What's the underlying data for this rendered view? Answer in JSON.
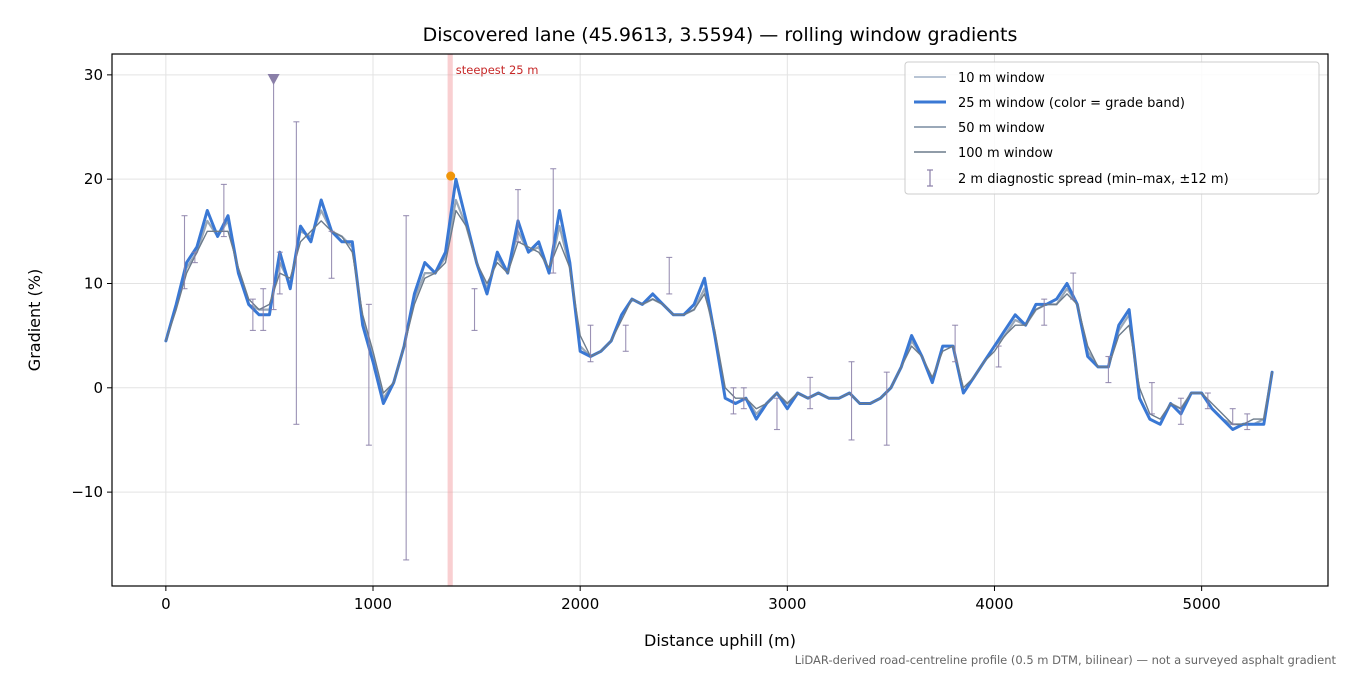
{
  "chart_data": {
    "type": "line",
    "title": "Discovered lane (45.9613, 3.5594) — rolling window gradients",
    "xlabel": "Distance uphill (m)",
    "ylabel": "Gradient (%)",
    "xlim": [
      -260,
      5610
    ],
    "ylim": [
      -19,
      32
    ],
    "xticks": [
      0,
      1000,
      2000,
      3000,
      4000,
      5000
    ],
    "xtick_labels": [
      "0",
      "1000",
      "2000",
      "3000",
      "4000",
      "5000"
    ],
    "yticks": [
      -10,
      0,
      10,
      20,
      30
    ],
    "ytick_labels": [
      "−10",
      "0",
      "10",
      "20",
      "30"
    ],
    "grid": true,
    "legend_position": "top-right",
    "x": [
      0,
      50,
      100,
      150,
      200,
      250,
      300,
      350,
      400,
      450,
      500,
      550,
      600,
      650,
      700,
      750,
      800,
      850,
      900,
      950,
      1000,
      1050,
      1100,
      1150,
      1200,
      1250,
      1300,
      1350,
      1400,
      1450,
      1500,
      1550,
      1600,
      1650,
      1700,
      1750,
      1800,
      1850,
      1900,
      1950,
      2000,
      2050,
      2100,
      2150,
      2200,
      2250,
      2300,
      2350,
      2400,
      2450,
      2500,
      2550,
      2600,
      2650,
      2700,
      2750,
      2800,
      2850,
      2900,
      2950,
      3000,
      3050,
      3100,
      3150,
      3200,
      3250,
      3300,
      3350,
      3400,
      3450,
      3500,
      3550,
      3600,
      3650,
      3700,
      3750,
      3800,
      3850,
      3900,
      3950,
      4000,
      4050,
      4100,
      4150,
      4200,
      4250,
      4300,
      4350,
      4400,
      4450,
      4500,
      4550,
      4600,
      4650,
      4700,
      4750,
      4800,
      4850,
      4900,
      4950,
      5000,
      5050,
      5100,
      5150,
      5200,
      5250,
      5300,
      5340
    ],
    "series": [
      {
        "name": "10 m window",
        "color": "#b8c4d4",
        "values": [
          4.5,
          8,
          12,
          13.5,
          17,
          14.5,
          16.5,
          11,
          8,
          7,
          7,
          13,
          9.5,
          15.5,
          14,
          18,
          15,
          14,
          14,
          6,
          2.5,
          -1.5,
          0.5,
          4,
          9,
          12,
          11,
          13,
          20,
          16,
          12,
          9,
          13,
          11,
          16,
          13,
          14,
          11,
          17,
          12,
          3.5,
          3,
          3.5,
          4.5,
          7,
          8.5,
          8,
          9,
          8,
          7,
          7,
          8,
          10.5,
          5,
          -1,
          -1.5,
          -1,
          -3,
          -1.5,
          -0.5,
          -2,
          -0.5,
          -1,
          -0.5,
          -1,
          -1,
          -0.5,
          -1.5,
          -1.5,
          -1,
          0,
          2,
          5,
          3,
          0.5,
          4,
          4,
          -0.5,
          1,
          2.5,
          4,
          5.5,
          7,
          6,
          8,
          8,
          8.5,
          10,
          8,
          3,
          2,
          2,
          6,
          7.5,
          -1,
          -3,
          -3.5,
          -1.5,
          -2.5,
          -0.5,
          -0.5,
          -2,
          -3,
          -4,
          -3.5,
          -3.5,
          -3.5,
          1.5
        ]
      },
      {
        "name": "25 m window (color = grade band)",
        "color": "#3a78d4",
        "values": [
          4.5,
          8,
          12,
          13.5,
          17,
          14.5,
          16.5,
          11,
          8,
          7,
          7,
          13,
          9.5,
          15.5,
          14,
          18,
          15,
          14,
          14,
          6,
          2.5,
          -1.5,
          0.5,
          4,
          9,
          12,
          11,
          13,
          20,
          16,
          12,
          9,
          13,
          11,
          16,
          13,
          14,
          11,
          17,
          12,
          3.5,
          3,
          3.5,
          4.5,
          7,
          8.5,
          8,
          9,
          8,
          7,
          7,
          8,
          10.5,
          5,
          -1,
          -1.5,
          -1,
          -3,
          -1.5,
          -0.5,
          -2,
          -0.5,
          -1,
          -0.5,
          -1,
          -1,
          -0.5,
          -1.5,
          -1.5,
          -1,
          0,
          2,
          5,
          3,
          0.5,
          4,
          4,
          -0.5,
          1,
          2.5,
          4,
          5.5,
          7,
          6,
          8,
          8,
          8.5,
          10,
          8,
          3,
          2,
          2,
          6,
          7.5,
          -1,
          -3,
          -3.5,
          -1.5,
          -2.5,
          -0.5,
          -0.5,
          -2,
          -3,
          -4,
          -3.5,
          -3.5,
          -3.5,
          1.5
        ]
      },
      {
        "name": "50 m window",
        "color": "#9aa8b8",
        "values": [
          4.5,
          8,
          11.5,
          13,
          16,
          14.5,
          16,
          11,
          8,
          7.5,
          7.5,
          12,
          10,
          15,
          14.5,
          17,
          15,
          14.5,
          13.5,
          6.5,
          3,
          -1,
          0.5,
          4,
          8.5,
          11,
          11,
          12.5,
          18,
          15.5,
          12,
          9.5,
          12.5,
          11,
          15,
          13,
          13.5,
          11,
          15.5,
          11.5,
          4,
          3,
          3.5,
          4.5,
          7,
          8.5,
          8,
          8.5,
          8,
          7,
          7,
          7.5,
          9.5,
          5,
          -1,
          -1.5,
          -1,
          -2.5,
          -1.5,
          -0.5,
          -1.5,
          -0.5,
          -1,
          -0.5,
          -1,
          -1,
          -0.5,
          -1.5,
          -1.5,
          -1,
          0,
          2,
          4.5,
          3,
          0.5,
          4,
          4,
          -0.5,
          1,
          2.5,
          4,
          5,
          6.5,
          6,
          7.5,
          8,
          8,
          9.5,
          8,
          3.5,
          2,
          2,
          5.5,
          7,
          -1,
          -3,
          -3.5,
          -1.5,
          -2,
          -0.5,
          -0.5,
          -2,
          -3,
          -3.5,
          -3.5,
          -3.5,
          -3,
          1.5
        ]
      },
      {
        "name": "100 m window",
        "color": "#6c7b8b",
        "values": [
          4.5,
          7.5,
          11,
          13,
          15,
          15,
          15,
          11.5,
          8.5,
          7.5,
          8,
          11,
          10.5,
          14,
          15,
          16,
          15,
          14.5,
          13,
          7,
          3.5,
          -0.5,
          0.5,
          4,
          8,
          10.5,
          11,
          12,
          17,
          15.5,
          12,
          10,
          12,
          11,
          14,
          13.5,
          13,
          11.5,
          14,
          11.5,
          5,
          3,
          3.5,
          4.5,
          6.5,
          8.5,
          8,
          8.5,
          8,
          7,
          7,
          7.5,
          9,
          5.5,
          0,
          -1,
          -1,
          -2,
          -1.5,
          -0.5,
          -1.5,
          -0.5,
          -1,
          -0.5,
          -1,
          -1,
          -0.5,
          -1.5,
          -1.5,
          -1,
          0,
          2,
          4,
          3,
          1,
          3.5,
          4,
          0,
          1,
          2.5,
          3.5,
          5,
          6,
          6,
          7.5,
          8,
          8,
          9,
          8,
          4,
          2,
          2,
          5,
          6,
          0,
          -2.5,
          -3,
          -1.5,
          -2,
          -0.5,
          -0.5,
          -1.5,
          -2.5,
          -3.5,
          -3.5,
          -3,
          -3,
          1.5
        ]
      }
    ],
    "errorbars": {
      "name": "2 m diagnostic spread (min–max, ±12 m)",
      "color": "#8a7fa8",
      "points": [
        {
          "x": 90,
          "low": 9.5,
          "high": 16.5
        },
        {
          "x": 140,
          "low": 12,
          "high": 13
        },
        {
          "x": 280,
          "low": 14.5,
          "high": 19.5
        },
        {
          "x": 420,
          "low": 5.5,
          "high": 8.5
        },
        {
          "x": 470,
          "low": 5.5,
          "high": 9.5
        },
        {
          "x": 520,
          "low": 7.5,
          "high": 30
        },
        {
          "x": 550,
          "low": 9,
          "high": 13
        },
        {
          "x": 630,
          "low": -3.5,
          "high": 25.5
        },
        {
          "x": 800,
          "low": 10.5,
          "high": 15
        },
        {
          "x": 980,
          "low": -5.5,
          "high": 8
        },
        {
          "x": 1160,
          "low": -16.5,
          "high": 16.5
        },
        {
          "x": 1490,
          "low": 5.5,
          "high": 9.5
        },
        {
          "x": 1700,
          "low": 14,
          "high": 19
        },
        {
          "x": 1870,
          "low": 11,
          "high": 21
        },
        {
          "x": 2050,
          "low": 2.5,
          "high": 6
        },
        {
          "x": 2220,
          "low": 3.5,
          "high": 6
        },
        {
          "x": 2430,
          "low": 9,
          "high": 12.5
        },
        {
          "x": 2740,
          "low": -2.5,
          "high": 0
        },
        {
          "x": 2790,
          "low": -2,
          "high": 0
        },
        {
          "x": 2950,
          "low": -4,
          "high": -1
        },
        {
          "x": 3110,
          "low": -2,
          "high": 1
        },
        {
          "x": 3310,
          "low": -5,
          "high": 2.5
        },
        {
          "x": 3480,
          "low": -5.5,
          "high": 1.5
        },
        {
          "x": 3810,
          "low": 2.5,
          "high": 6
        },
        {
          "x": 4020,
          "low": 2,
          "high": 4
        },
        {
          "x": 4240,
          "low": 6,
          "high": 8.5
        },
        {
          "x": 4380,
          "low": 8.5,
          "high": 11
        },
        {
          "x": 4550,
          "low": 0.5,
          "high": 3
        },
        {
          "x": 4760,
          "low": -2.5,
          "high": 0.5
        },
        {
          "x": 4900,
          "low": -3.5,
          "high": -1
        },
        {
          "x": 5030,
          "low": -2,
          "high": -0.5
        },
        {
          "x": 5150,
          "low": -3.5,
          "high": -2
        },
        {
          "x": 5220,
          "low": -4,
          "high": -2.5
        }
      ]
    },
    "marker_max": {
      "x": 520,
      "y": 29.6,
      "color": "#8a7fa8"
    },
    "marker_steepest": {
      "x": 1375,
      "y": 20.3,
      "color": "#f0960a"
    },
    "steepest_band": {
      "x_start": 1360,
      "x_end": 1385,
      "color": "#f4a0a4",
      "label": "steepest 25 m"
    },
    "footnote": "LiDAR-derived road-centreline profile (0.5 m DTM, bilinear) — not a surveyed asphalt gradient"
  }
}
